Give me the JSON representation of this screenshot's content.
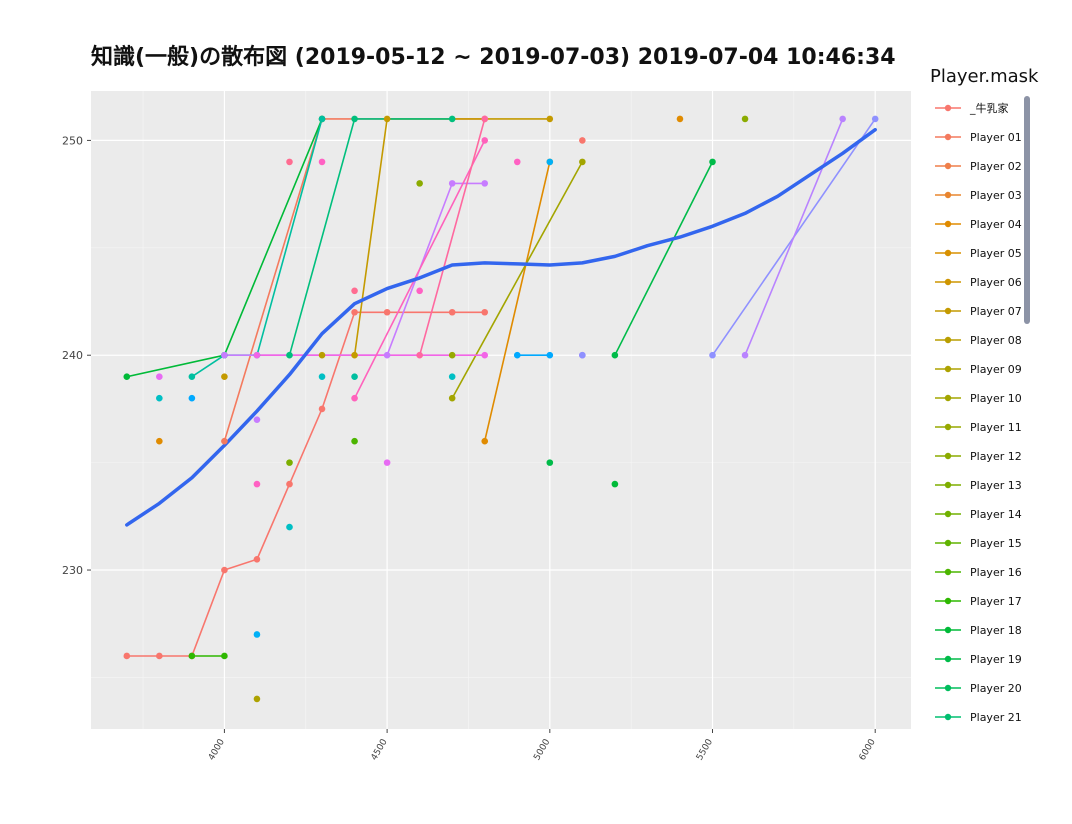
{
  "chart_data": {
    "type": "scatter",
    "title": "知識(一般)の散布図 (2019-05-12 ~ 2019-07-03) 2019-07-04 10:46:34",
    "xlabel": "",
    "ylabel": "",
    "xlim": [
      3590,
      6110
    ],
    "ylim": [
      222.6,
      252.3
    ],
    "x_ticks": [
      4000,
      4500,
      5000,
      5500,
      6000
    ],
    "y_ticks": [
      230,
      240,
      250
    ],
    "grid": true,
    "legend": {
      "title": "Player.mask",
      "placement": "right",
      "entries": [
        "_牛乳家",
        "Player 01",
        "Player 02",
        "Player 03",
        "Player 04",
        "Player 05",
        "Player 06",
        "Player 07",
        "Player 08",
        "Player 09",
        "Player 10",
        "Player 11",
        "Player 12",
        "Player 13",
        "Player 14",
        "Player 15",
        "Player 16",
        "Player 17",
        "Player 18",
        "Player 19",
        "Player 20",
        "Player 21"
      ],
      "colors": [
        "#F8766D",
        "#F47A5E",
        "#EF7F4A",
        "#E8852F",
        "#E08B00",
        "#D89000",
        "#CE9500",
        "#C49A00",
        "#B99E00",
        "#ADA200",
        "#A3A500",
        "#97A900",
        "#8BAB00",
        "#7EAE00",
        "#70B000",
        "#60B300",
        "#4CB500",
        "#2EB800",
        "#00BA38",
        "#00BB49",
        "#00BD5C",
        "#00BF70"
      ]
    },
    "trend": {
      "color": "#3366EE",
      "points": [
        [
          3700,
          232.1
        ],
        [
          3800,
          233.1
        ],
        [
          3900,
          234.3
        ],
        [
          4000,
          235.8
        ],
        [
          4100,
          237.4
        ],
        [
          4200,
          239.1
        ],
        [
          4300,
          241.0
        ],
        [
          4400,
          242.4
        ],
        [
          4500,
          243.1
        ],
        [
          4600,
          243.6
        ],
        [
          4700,
          244.2
        ],
        [
          4800,
          244.3
        ],
        [
          4900,
          244.25
        ],
        [
          5000,
          244.2
        ],
        [
          5100,
          244.3
        ],
        [
          5200,
          244.6
        ],
        [
          5300,
          245.1
        ],
        [
          5400,
          245.5
        ],
        [
          5500,
          246.0
        ],
        [
          5600,
          246.6
        ],
        [
          5700,
          247.4
        ],
        [
          5800,
          248.4
        ],
        [
          5900,
          249.4
        ],
        [
          6000,
          250.5
        ]
      ]
    },
    "series": [
      {
        "color": "#F8766D",
        "points": [
          [
            3700,
            226
          ],
          [
            3800,
            226
          ],
          [
            3900,
            226
          ],
          [
            4000,
            230
          ],
          [
            4100,
            230.5
          ],
          [
            4200,
            234
          ],
          [
            4300,
            237.5
          ],
          [
            4400,
            242
          ],
          [
            4500,
            242
          ],
          [
            4700,
            242
          ],
          [
            4800,
            242
          ]
        ]
      },
      {
        "color": "#F47A5E",
        "points": [
          [
            4000,
            236
          ],
          [
            4300,
            251
          ],
          [
            4800,
            251
          ]
        ]
      },
      {
        "color": "#E08B00",
        "points": [
          [
            4800,
            236
          ],
          [
            5000,
            249
          ]
        ]
      },
      {
        "color": "#C49A00",
        "points": [
          [
            4400,
            240
          ],
          [
            4500,
            251
          ],
          [
            5000,
            251
          ]
        ]
      },
      {
        "color": "#A3A500",
        "points": [
          [
            4700,
            238
          ],
          [
            5100,
            249
          ]
        ]
      },
      {
        "color": "#2EB800",
        "points": [
          [
            3900,
            226
          ],
          [
            4000,
            226
          ]
        ]
      },
      {
        "color": "#00BA38",
        "points": [
          [
            3700,
            239
          ],
          [
            4000,
            240
          ],
          [
            4300,
            251
          ]
        ]
      },
      {
        "color": "#00BB49",
        "points": [
          [
            5200,
            240
          ],
          [
            5500,
            249
          ]
        ]
      },
      {
        "color": "#00BF7D",
        "points": [
          [
            4200,
            240
          ],
          [
            4400,
            251
          ],
          [
            4700,
            251
          ]
        ]
      },
      {
        "color": "#00BFA0",
        "points": [
          [
            3900,
            239
          ],
          [
            4000,
            240
          ],
          [
            4100,
            240
          ],
          [
            4300,
            251
          ]
        ]
      },
      {
        "color": "#00A9FF",
        "points": [
          [
            4900,
            240
          ],
          [
            5000,
            240
          ]
        ]
      },
      {
        "color": "#8F91FF",
        "points": [
          [
            5500,
            240
          ],
          [
            6000,
            251
          ]
        ]
      },
      {
        "color": "#B983FF",
        "points": [
          [
            5600,
            240
          ],
          [
            5900,
            251
          ]
        ]
      },
      {
        "color": "#C77CFF",
        "points": [
          [
            4000,
            240
          ],
          [
            4500,
            240
          ],
          [
            4700,
            248
          ],
          [
            4800,
            248
          ]
        ]
      },
      {
        "color": "#F265E7",
        "points": [
          [
            4100,
            240
          ],
          [
            4800,
            240
          ]
        ]
      },
      {
        "color": "#FF62BC",
        "points": [
          [
            4400,
            238
          ],
          [
            4800,
            250
          ]
        ]
      },
      {
        "color": "#FF689F",
        "points": [
          [
            4600,
            240
          ],
          [
            4800,
            251
          ]
        ]
      }
    ],
    "points": [
      {
        "x": 3800,
        "y": 239,
        "color": "#E76BF3"
      },
      {
        "x": 3800,
        "y": 238,
        "color": "#00BFC4"
      },
      {
        "x": 3800,
        "y": 236,
        "color": "#E08B00"
      },
      {
        "x": 3900,
        "y": 238,
        "color": "#00A9FF"
      },
      {
        "x": 4000,
        "y": 239,
        "color": "#C49A00"
      },
      {
        "x": 4100,
        "y": 237,
        "color": "#C77CFF"
      },
      {
        "x": 4100,
        "y": 234,
        "color": "#FF61C3"
      },
      {
        "x": 4100,
        "y": 227,
        "color": "#00B0F6"
      },
      {
        "x": 4100,
        "y": 224,
        "color": "#ADA200"
      },
      {
        "x": 4200,
        "y": 249,
        "color": "#FF6C91"
      },
      {
        "x": 4200,
        "y": 235,
        "color": "#7CAE00"
      },
      {
        "x": 4200,
        "y": 232,
        "color": "#00BFC4"
      },
      {
        "x": 4300,
        "y": 249,
        "color": "#FF61C3"
      },
      {
        "x": 4300,
        "y": 240,
        "color": "#B99E00"
      },
      {
        "x": 4300,
        "y": 239,
        "color": "#00BFC4"
      },
      {
        "x": 4400,
        "y": 243,
        "color": "#FF6C91"
      },
      {
        "x": 4400,
        "y": 239,
        "color": "#00BFA0"
      },
      {
        "x": 4400,
        "y": 236,
        "color": "#4CB500"
      },
      {
        "x": 4500,
        "y": 235,
        "color": "#E76BF3"
      },
      {
        "x": 4600,
        "y": 248,
        "color": "#8BAB00"
      },
      {
        "x": 4600,
        "y": 243,
        "color": "#FF61C3"
      },
      {
        "x": 4700,
        "y": 240,
        "color": "#97A900"
      },
      {
        "x": 4700,
        "y": 239,
        "color": "#00BFC4"
      },
      {
        "x": 4900,
        "y": 249,
        "color": "#FF61C3"
      },
      {
        "x": 5000,
        "y": 249,
        "color": "#00B0F6"
      },
      {
        "x": 5000,
        "y": 235,
        "color": "#00BB49"
      },
      {
        "x": 5100,
        "y": 250,
        "color": "#F8766D"
      },
      {
        "x": 5100,
        "y": 240,
        "color": "#B983FF"
      },
      {
        "x": 5100,
        "y": 240,
        "color": "#8F91FF"
      },
      {
        "x": 5200,
        "y": 234,
        "color": "#00BA38"
      },
      {
        "x": 5400,
        "y": 251,
        "color": "#E08B00"
      },
      {
        "x": 5600,
        "y": 251,
        "color": "#8BAB00"
      }
    ]
  }
}
